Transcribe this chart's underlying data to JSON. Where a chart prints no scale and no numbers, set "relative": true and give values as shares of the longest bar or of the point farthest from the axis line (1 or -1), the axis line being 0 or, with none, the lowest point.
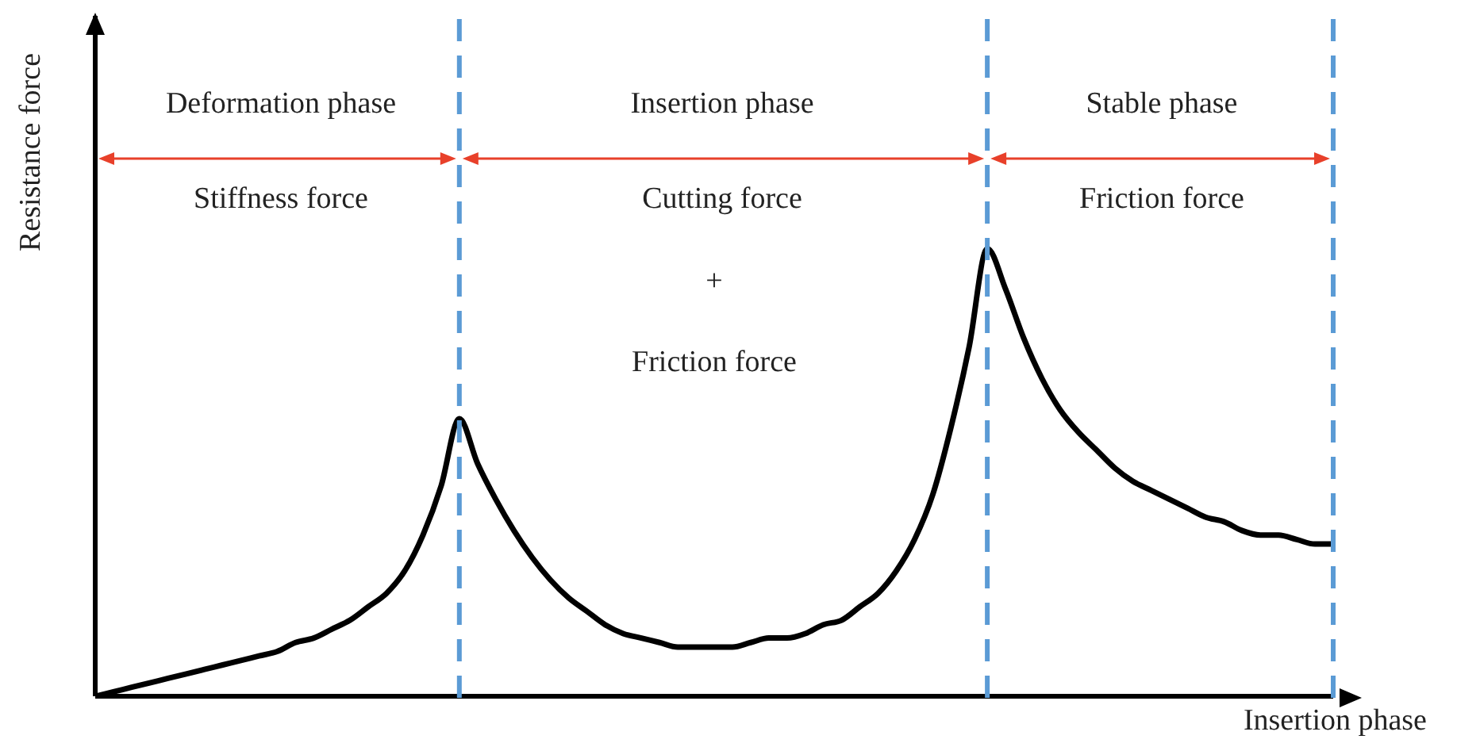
{
  "chart_data": {
    "type": "line",
    "relative": true,
    "xlabel": "Insertion phase",
    "ylabel": "Resistance force",
    "categories": [
      null,
      null,
      null,
      null,
      null,
      null,
      null,
      null,
      null,
      null,
      null,
      null,
      null,
      null,
      null,
      null,
      null,
      null,
      null,
      null,
      null,
      null,
      null,
      null,
      null,
      null,
      null,
      null,
      null,
      null,
      null,
      null,
      null,
      null,
      null,
      null,
      null,
      null,
      null,
      null,
      null,
      null,
      null,
      null,
      null,
      null,
      null,
      null,
      null,
      null,
      null,
      null,
      null,
      null,
      null,
      null,
      null,
      null,
      null,
      null,
      null,
      null,
      null,
      null,
      null,
      null,
      null,
      null,
      null
    ],
    "series": [
      {
        "color": "#000000",
        "values": [
          0,
          0.01,
          0.02,
          0.03,
          0.04,
          0.05,
          0.06,
          0.07,
          0.08,
          0.09,
          0.1,
          0.12,
          0.13,
          0.15,
          0.17,
          0.2,
          0.23,
          0.28,
          0.36,
          0.47,
          0.62,
          0.52,
          0.44,
          0.37,
          0.31,
          0.26,
          0.22,
          0.19,
          0.16,
          0.14,
          0.13,
          0.12,
          0.11,
          0.11,
          0.11,
          0.11,
          0.12,
          0.13,
          0.13,
          0.14,
          0.16,
          0.17,
          0.2,
          0.23,
          0.28,
          0.35,
          0.45,
          0.6,
          0.78,
          1,
          0.91,
          0.8,
          0.71,
          0.64,
          0.59,
          0.55,
          0.51,
          0.48,
          0.46,
          0.44,
          0.42,
          0.4,
          0.39,
          0.37,
          0.36,
          0.36,
          0.35,
          0.34,
          0.34
        ]
      }
    ],
    "marker": "none",
    "line_style": "solid",
    "annotations": [
      "Deformation phase",
      "Stiffness force",
      "Insertion phase",
      "Cutting force",
      "+",
      "Friction force",
      "Stable phase",
      "Friction force"
    ]
  }
}
